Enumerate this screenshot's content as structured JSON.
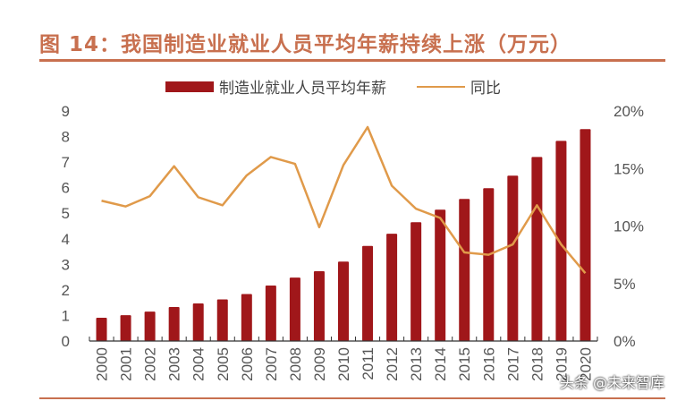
{
  "title": "图 14：我国制造业就业人员平均年薪持续上涨（万元）",
  "watermark": "头条 @未来智库",
  "colors": {
    "title": "#c8704f",
    "bar": "#a0171a",
    "line": "#e09a4a"
  },
  "chart_data": {
    "type": "bar+line",
    "categories": [
      "2000",
      "2001",
      "2002",
      "2003",
      "2004",
      "2005",
      "2006",
      "2007",
      "2008",
      "2009",
      "2010",
      "2011",
      "2012",
      "2013",
      "2014",
      "2015",
      "2016",
      "2017",
      "2018",
      "2019",
      "2020"
    ],
    "series": [
      {
        "name": "制造业就业人员平均年薪",
        "type": "bar",
        "axis": "left",
        "values": [
          0.91,
          1.01,
          1.15,
          1.33,
          1.47,
          1.63,
          1.84,
          2.17,
          2.48,
          2.73,
          3.11,
          3.72,
          4.2,
          4.65,
          5.14,
          5.56,
          5.98,
          6.47,
          7.2,
          7.83,
          8.29
        ]
      },
      {
        "name": "同比",
        "type": "line",
        "axis": "right",
        "values": [
          12.2,
          11.7,
          12.6,
          15.2,
          12.5,
          11.8,
          14.4,
          16.0,
          15.4,
          9.9,
          15.3,
          18.6,
          13.5,
          11.5,
          10.7,
          7.7,
          7.5,
          8.4,
          11.8,
          8.4,
          5.9
        ]
      }
    ],
    "ylim_left": [
      0,
      9
    ],
    "left_ticks": [
      "0",
      "1",
      "2",
      "3",
      "4",
      "5",
      "6",
      "7",
      "8",
      "9"
    ],
    "ylim_right": [
      0,
      20
    ],
    "right_ticks": [
      "0%",
      "5%",
      "10%",
      "15%",
      "20%"
    ],
    "legend_position": "top",
    "grid": false
  }
}
